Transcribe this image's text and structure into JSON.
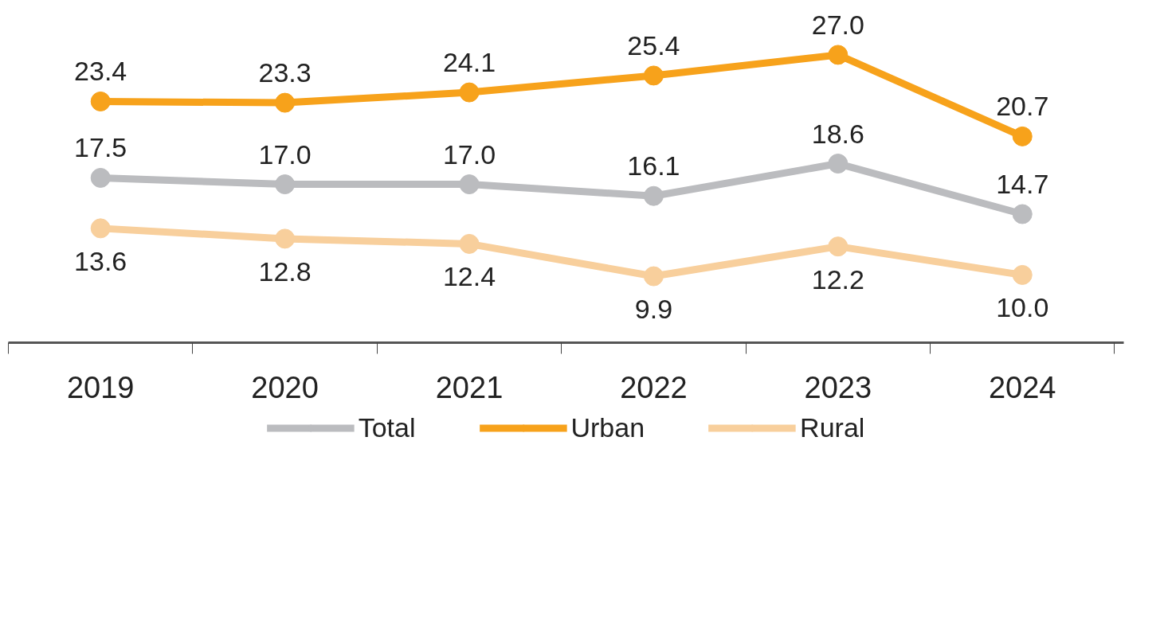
{
  "chart_data": {
    "type": "line",
    "categories": [
      "2019",
      "2020",
      "2021",
      "2022",
      "2023",
      "2024"
    ],
    "series": [
      {
        "name": "Total",
        "color": "#bbbcbf",
        "values": [
          17.5,
          17.0,
          17.0,
          16.1,
          18.6,
          14.7
        ],
        "value_labels": [
          "17.5",
          "17.0",
          "17.0",
          "16.1",
          "18.6",
          "14.7"
        ]
      },
      {
        "name": "Urban",
        "color": "#f7a21b",
        "values": [
          23.4,
          23.3,
          24.1,
          25.4,
          27.0,
          20.7
        ],
        "value_labels": [
          "23.4",
          "23.3",
          "24.1",
          "25.4",
          "27.0",
          "20.7"
        ]
      },
      {
        "name": "Rural",
        "color": "#f8cf9c",
        "values": [
          13.6,
          12.8,
          12.4,
          9.9,
          12.2,
          10.0
        ],
        "value_labels": [
          "13.6",
          "12.8",
          "12.4",
          "9.9",
          "12.2",
          "10.0"
        ]
      }
    ],
    "marker": "circle",
    "line_style": "solid",
    "legend": "bottom"
  }
}
